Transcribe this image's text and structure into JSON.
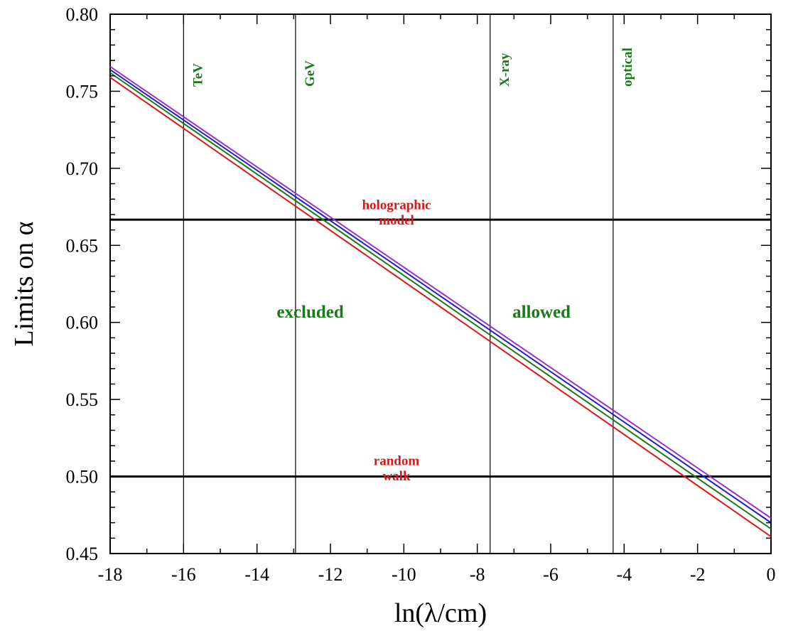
{
  "chart_data": {
    "type": "line",
    "title": "",
    "xlabel": "ln(λ/cm)",
    "ylabel": "Limits on α",
    "xlim": [
      -18,
      0
    ],
    "ylim": [
      0.45,
      0.8
    ],
    "grid": false,
    "xticks": [
      -18,
      -16,
      -14,
      -12,
      -10,
      -8,
      -6,
      -4,
      -2,
      0
    ],
    "xtick_labels": [
      "-18",
      "-16",
      "-14",
      "-12",
      "-10",
      "-8",
      "-6",
      "-4",
      "-2",
      "0"
    ],
    "yticks": [
      0.45,
      0.5,
      0.55,
      0.6,
      0.65,
      0.7,
      0.75,
      0.8
    ],
    "ytick_labels": [
      "0.45",
      "0.50",
      "0.55",
      "0.60",
      "0.65",
      "0.70",
      "0.75",
      "0.80"
    ],
    "series": [
      {
        "color": "#9b30d9",
        "x": [
          -18,
          0
        ],
        "y": [
          0.766,
          0.473
        ]
      },
      {
        "color": "#1f1fcc",
        "x": [
          -18,
          0
        ],
        "y": [
          0.764,
          0.47
        ]
      },
      {
        "color": "#1a7a1a",
        "x": [
          -18,
          0
        ],
        "y": [
          0.762,
          0.466
        ]
      },
      {
        "color": "#e01515",
        "x": [
          -18,
          0
        ],
        "y": [
          0.759,
          0.461
        ]
      }
    ],
    "horizontal_lines": [
      {
        "y": 0.6667,
        "label_lines": [
          "holographic",
          "model"
        ],
        "label_x": -10.2,
        "label_y1": 0.6735,
        "label_y2": 0.6635
      },
      {
        "y": 0.5,
        "label_lines": [
          "random",
          "walk"
        ],
        "label_x": -10.2,
        "label_y1": 0.5075,
        "label_y2": 0.4975
      }
    ],
    "vertical_bands": [
      {
        "x": -16.0,
        "label": "TeV"
      },
      {
        "x": -12.95,
        "label": "GeV"
      },
      {
        "x": -7.65,
        "label": "X-ray"
      },
      {
        "x": -4.3,
        "label": "optical"
      }
    ],
    "region_labels": [
      {
        "text": "excluded",
        "x": -12.55,
        "y": 0.603
      },
      {
        "text": "allowed",
        "x": -6.25,
        "y": 0.603
      }
    ],
    "colors": {
      "axis": "#000000",
      "annotation_red": "#e01515",
      "annotation_green": "#1a7a1a"
    }
  }
}
